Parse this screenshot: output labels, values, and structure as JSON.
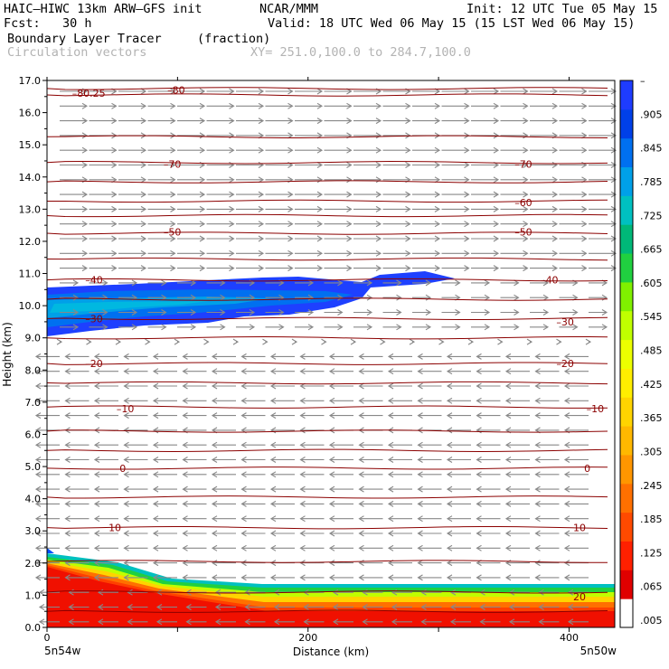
{
  "header": {
    "model": "HAIC–HIWC 13km ARW–GFS init",
    "org": "NCAR/MMM",
    "init": "Init: 12 UTC Tue 05 May 15",
    "fcst": "Fcst:   30 h",
    "valid": "Valid: 18 UTC Wed 06 May 15 (15 LST Wed 06 May 15)",
    "field": "Boundary Layer Tracer",
    "units": "(fraction)",
    "vectors": "Circulation vectors",
    "xy": "XY= 251.0,100.0 to 284.7,100.0"
  },
  "colors": {
    "contour": "#8b0000",
    "vector": "#888888",
    "scale": [
      "#ffffff",
      "#e00000",
      "#ff2000",
      "#ff4a00",
      "#ff7000",
      "#ff9600",
      "#ffb800",
      "#ffd400",
      "#ffee00",
      "#ecff00",
      "#c0ff00",
      "#80f000",
      "#20d040",
      "#00b878",
      "#00c0c0",
      "#00a0e8",
      "#0070f0",
      "#0040e8",
      "#1e3cff"
    ]
  },
  "chart_data": {
    "type": "heatmap",
    "title": "Boundary Layer Tracer",
    "xlabel": "Distance (km)",
    "ylabel": "Height (km)",
    "xlim": [
      0,
      435
    ],
    "ylim": [
      0,
      17
    ],
    "x_ticks": [
      "0",
      "200",
      "400"
    ],
    "x_endpoints": [
      "5n54w",
      "5n50w"
    ],
    "y_ticks": [
      "0.0",
      "1.0",
      "2.0",
      "3.0",
      "4.0",
      "5.0",
      "6.0",
      "7.0",
      "8.0",
      "9.0",
      "10.0",
      "11.0",
      "12.0",
      "13.0",
      "14.0",
      "15.0",
      "16.0",
      "17.0"
    ],
    "colorbar_labels": [
      ".005",
      ".065",
      ".125",
      ".185",
      ".245",
      ".305",
      ".365",
      ".425",
      ".485",
      ".545",
      ".605",
      ".665",
      ".725",
      ".785",
      ".845",
      ".905",
      "–"
    ],
    "contour_labels": [
      {
        "text": "–80.25",
        "x": 32,
        "y": 16.6
      },
      {
        "text": "–80",
        "x": 99,
        "y": 16.7
      },
      {
        "text": "–70",
        "x": 96,
        "y": 14.4
      },
      {
        "text": "–70",
        "x": 365,
        "y": 14.4
      },
      {
        "text": "–60",
        "x": 365,
        "y": 13.2
      },
      {
        "text": "–50",
        "x": 96,
        "y": 12.3
      },
      {
        "text": "–50",
        "x": 365,
        "y": 12.3
      },
      {
        "text": "–40",
        "x": 36,
        "y": 10.8
      },
      {
        "text": "–40",
        "x": 385,
        "y": 10.8
      },
      {
        "text": "–30",
        "x": 36,
        "y": 9.6
      },
      {
        "text": "–30",
        "x": 397,
        "y": 9.5
      },
      {
        "text": "–20",
        "x": 36,
        "y": 8.2
      },
      {
        "text": "–20",
        "x": 397,
        "y": 8.2
      },
      {
        "text": "–10",
        "x": 60,
        "y": 6.8
      },
      {
        "text": "–10",
        "x": 420,
        "y": 6.8
      },
      {
        "text": "0",
        "x": 58,
        "y": 4.95
      },
      {
        "text": "0",
        "x": 414,
        "y": 4.95
      },
      {
        "text": "10",
        "x": 52,
        "y": 3.1
      },
      {
        "text": "10",
        "x": 408,
        "y": 3.1
      },
      {
        "text": "20",
        "x": 408,
        "y": 0.95
      }
    ]
  }
}
